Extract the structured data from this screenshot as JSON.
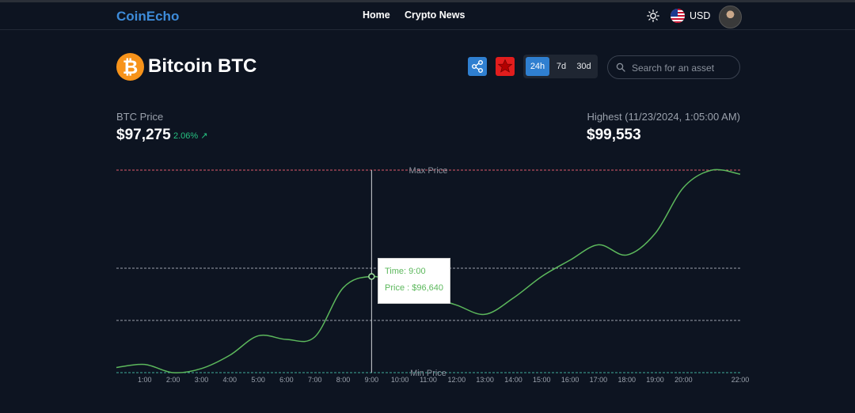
{
  "nav": {
    "brand": "CoinEcho",
    "links": [
      "Home",
      "Crypto News"
    ],
    "currency": "USD"
  },
  "coin": {
    "title": "Bitcoin BTC",
    "price_label": "BTC Price",
    "price": "$97,275",
    "change": "2.06%",
    "highest_label": "Highest (11/23/2024, 1:05:00 AM)",
    "highest_value": "$99,553"
  },
  "controls": {
    "ranges": [
      "24h",
      "7d",
      "30d"
    ],
    "active_range": "24h",
    "search_placeholder": "Search for an asset"
  },
  "colors": {
    "accent": "#2f7fd0",
    "line": "#5cb85c",
    "max_line": "#e05a6a",
    "favorite": "#e11d1d",
    "bitcoin": "#f7931a"
  },
  "chart_data": {
    "type": "line",
    "title": "",
    "max_label": "Max Price",
    "min_label": "Min Price",
    "x_ticks": [
      "1:00",
      "2:00",
      "3:00",
      "4:00",
      "5:00",
      "6:00",
      "7:00",
      "8:00",
      "9:00",
      "10:00",
      "11:00",
      "12:00",
      "13:00",
      "14:00",
      "15:00",
      "16:00",
      "17:00",
      "18:00",
      "19:00",
      "20:00",
      "22:00"
    ],
    "x": [
      0,
      1,
      2,
      3,
      4,
      5,
      6,
      7,
      8,
      9,
      10,
      11,
      12,
      13,
      14,
      15,
      16,
      17,
      18,
      19,
      20,
      21,
      22
    ],
    "y": [
      95750,
      95780,
      95700,
      95740,
      95870,
      96060,
      96025,
      96050,
      96530,
      96640,
      96560,
      96450,
      96360,
      96270,
      96430,
      96640,
      96800,
      96950,
      96850,
      97060,
      97510,
      97680,
      97640
    ],
    "ylim": [
      95700,
      97680
    ],
    "hover": {
      "time": "Time: 9:00",
      "price": "Price : $96,640",
      "index": 9
    }
  }
}
